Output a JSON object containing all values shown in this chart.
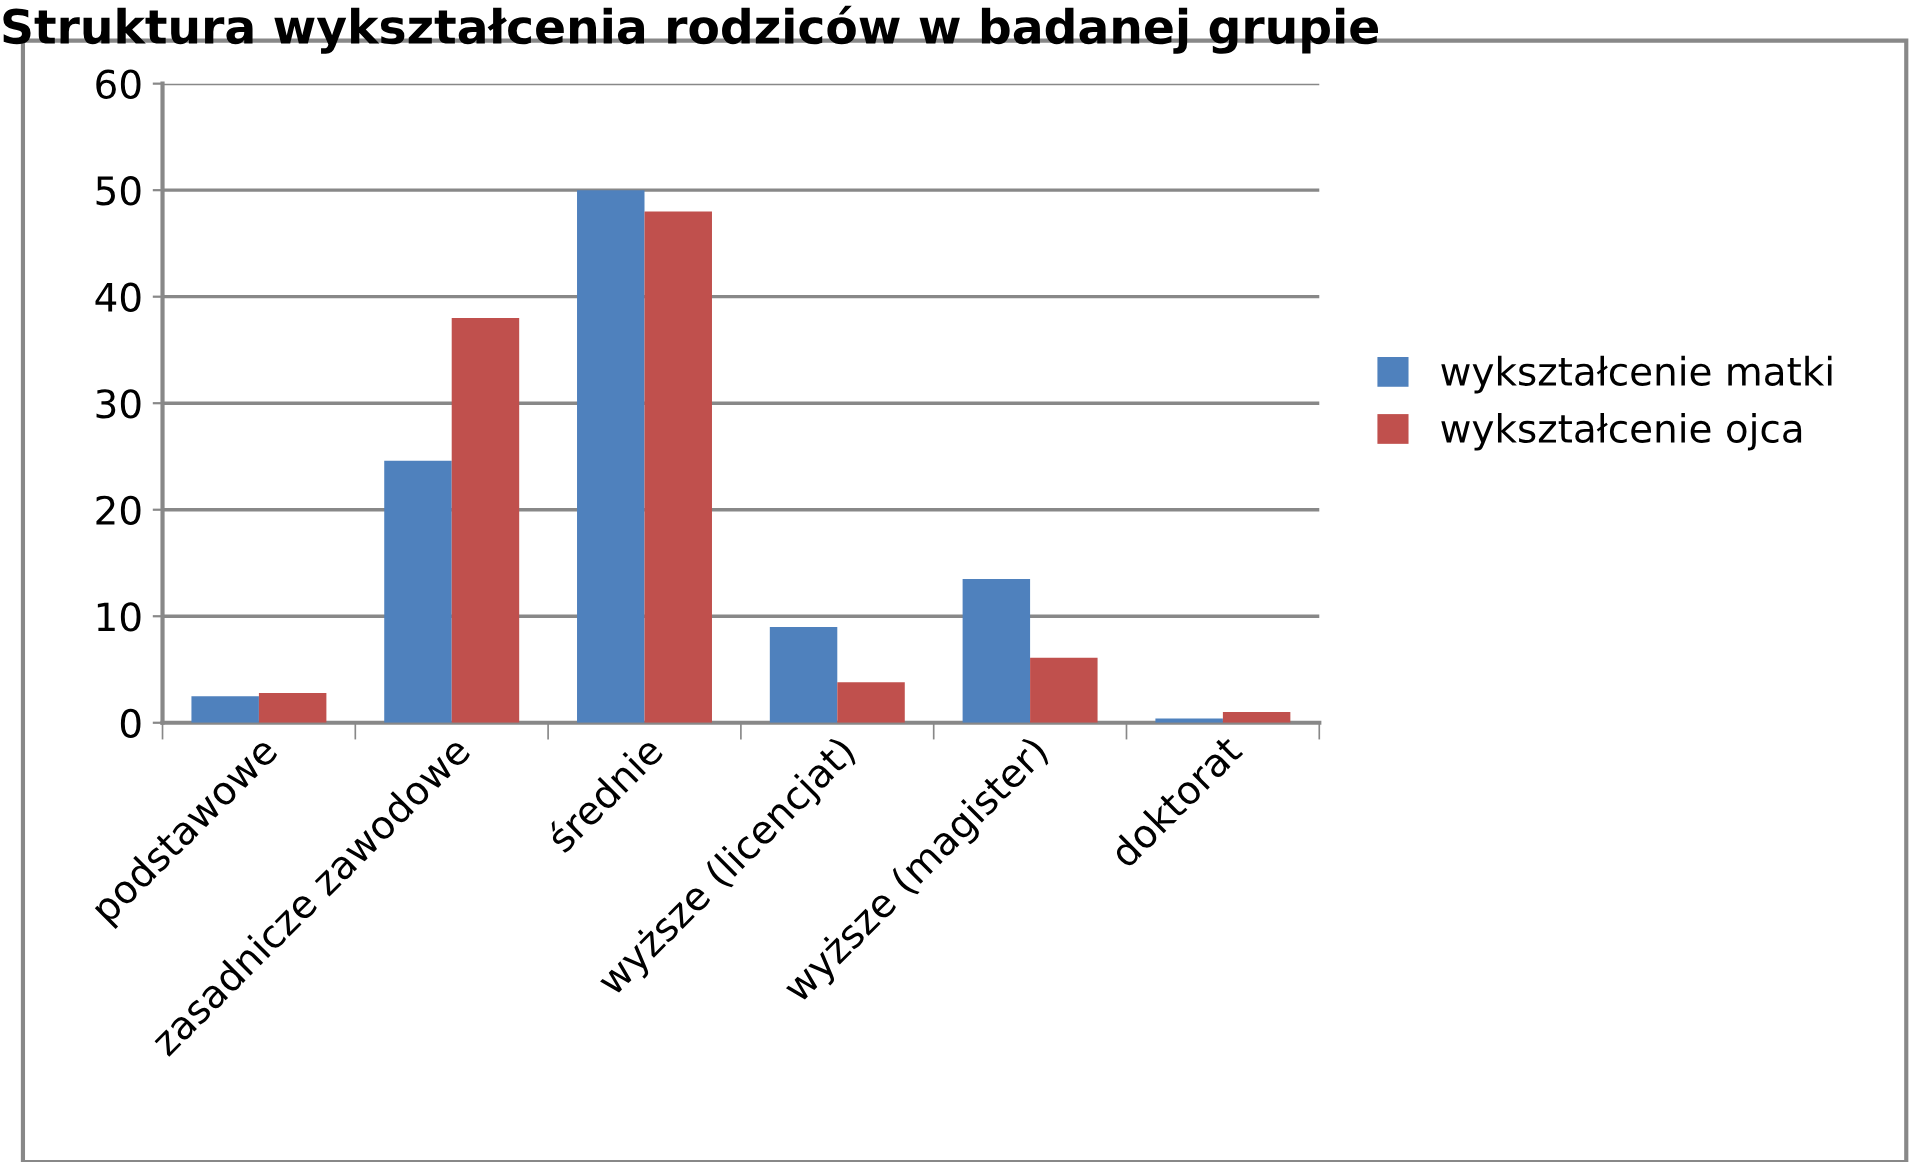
{
  "chart_data": {
    "type": "bar",
    "title": "Struktura wykształcenia rodziców w badanej grupie",
    "categories": [
      "podstawowe",
      "zasadnicze zawodowe",
      "średnie",
      "wyższe (licencjat)",
      "wyższe (magister)",
      "doktorat"
    ],
    "series": [
      {
        "name": "wykształcenie matki",
        "color": "#4f81bd",
        "values": [
          2.5,
          24.6,
          50,
          9,
          13.5,
          0.4
        ]
      },
      {
        "name": "wykształcenie ojca",
        "color": "#c0504d",
        "values": [
          2.8,
          38,
          48,
          3.8,
          6.1,
          1
        ]
      }
    ],
    "ylim": [
      0,
      60
    ],
    "yticks": [
      0,
      10,
      20,
      30,
      40,
      50,
      60
    ],
    "grid": "y",
    "legend": "right"
  }
}
